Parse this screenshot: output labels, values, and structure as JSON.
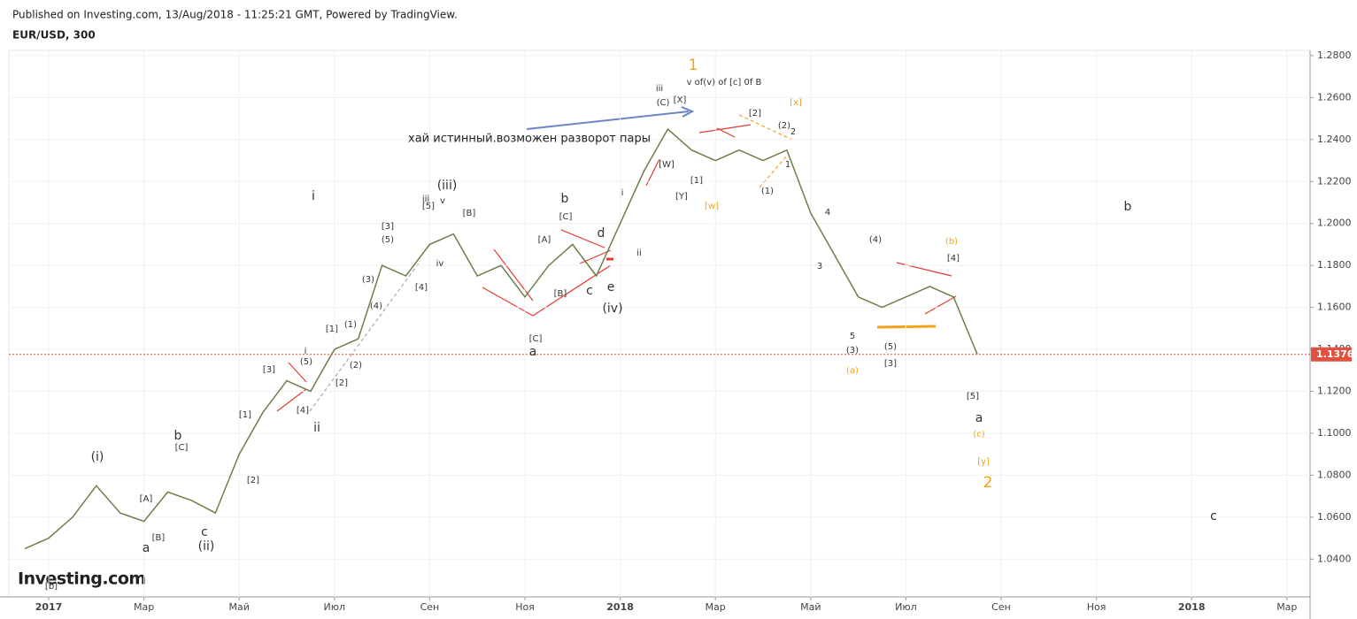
{
  "header": {
    "published": "Published on Investing.com, 13/Aug/2018 - 11:25:21 GMT, Powered by TradingView.",
    "symbol": "EUR/USD, 300"
  },
  "logo": "Investing.com",
  "chart_data": {
    "type": "line",
    "categories": [
      null,
      "2017",
      null,
      null,
      null,
      "Мар",
      null,
      null,
      null,
      "Май",
      null,
      null,
      null,
      "Июл",
      null,
      null,
      null,
      "Сен",
      null,
      null,
      null,
      "Ноя",
      null,
      null,
      null,
      "2018",
      null,
      null,
      null,
      "Мар",
      null,
      null,
      null,
      "Май",
      null,
      null,
      null,
      "Июл",
      null,
      null,
      null,
      "Сен",
      null,
      null,
      null,
      "Ноя",
      null,
      null,
      null,
      "2018",
      null,
      null,
      null,
      "Мар",
      null,
      null
    ],
    "series": [
      {
        "name": "EUR/USD",
        "color": "#6b7f4a",
        "values": [
          1.045,
          1.05,
          1.06,
          1.075,
          1.062,
          1.058,
          1.072,
          1.068,
          1.062,
          1.09,
          1.11,
          1.125,
          1.12,
          1.14,
          1.145,
          1.18,
          1.175,
          1.19,
          1.195,
          1.175,
          1.18,
          1.165,
          1.18,
          1.19,
          1.175,
          1.2,
          1.225,
          1.245,
          1.235,
          1.23,
          1.235,
          1.23,
          1.235,
          1.205,
          1.185,
          1.165,
          1.16,
          1.165,
          1.17,
          1.165,
          1.1376,
          null,
          null,
          null,
          null,
          null,
          null,
          null,
          null,
          null,
          null,
          null,
          null,
          null,
          null,
          null
        ]
      }
    ],
    "ylim": [
      1.022,
      1.2825
    ],
    "yticks": [
      {
        "value": 1.04,
        "label": "1.0400"
      },
      {
        "value": 1.06,
        "label": "1.0600"
      },
      {
        "value": 1.08,
        "label": "1.0800"
      },
      {
        "value": 1.1,
        "label": "1.1000"
      },
      {
        "value": 1.12,
        "label": "1.1200"
      },
      {
        "value": 1.14,
        "label": "1.1400"
      },
      {
        "value": 1.16,
        "label": "1.1600"
      },
      {
        "value": 1.18,
        "label": "1.1800"
      },
      {
        "value": 1.2,
        "label": "1.2000"
      },
      {
        "value": 1.22,
        "label": "1.2200"
      },
      {
        "value": 1.24,
        "label": "1.2400"
      },
      {
        "value": 1.26,
        "label": "1.2600"
      },
      {
        "value": 1.28,
        "label": "1.2800"
      }
    ],
    "last_price": 1.1376,
    "last_price_color": "#e0523f"
  },
  "annotations": [
    "1",
    "v of(v) of [c] 0f B",
    "хай истинный.возможен разворот пары",
    "i",
    "(iii)",
    "iii",
    "v",
    "[5]",
    "[3]",
    "(5)",
    "[B]",
    "iv",
    "[4]",
    "(3)",
    "(4)",
    "[1]",
    "(1)",
    "i",
    "(5)",
    "(2)",
    "[2]",
    "[3]",
    "[4]",
    "ii",
    "[1]",
    "[2]",
    "(i)",
    "b",
    "[C]",
    "[A]",
    "[B]",
    "a",
    "c",
    "(ii)",
    "[b]",
    "b",
    "[C]",
    "[A]",
    "d",
    "[B]",
    "c",
    "e",
    "(iv)",
    "[C]",
    "a",
    "i",
    "ii",
    "iii",
    "(C)",
    "[X]",
    "[W]",
    "[1]",
    "[Y]",
    "[w]",
    "[2]",
    "(2)",
    "2",
    "[x]",
    "1",
    "(1)",
    "4",
    "3",
    "5",
    "(3)",
    "(a)",
    "(4)",
    "(5)",
    "[3]",
    "(b)",
    "[4]",
    "[5]",
    "a",
    "(c)",
    "[y]",
    "2",
    "b",
    "c"
  ]
}
